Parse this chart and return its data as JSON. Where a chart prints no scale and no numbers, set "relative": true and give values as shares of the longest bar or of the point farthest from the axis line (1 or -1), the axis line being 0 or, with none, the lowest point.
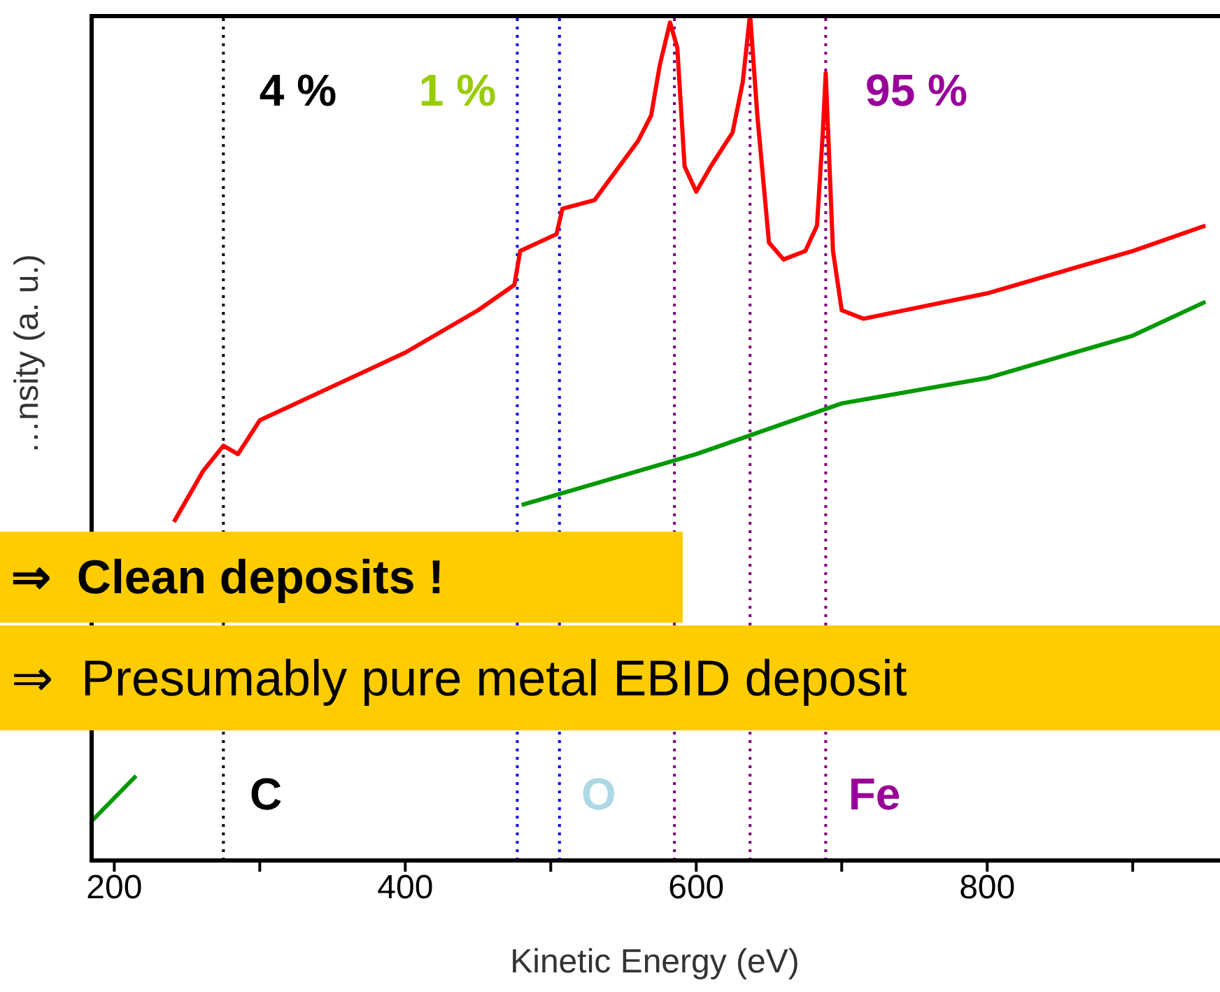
{
  "chart_data": {
    "type": "line",
    "relative": true,
    "xlabel": "Kinetic Energy (eV)",
    "ylabel": "…nsity (a. u.)",
    "xlim": [
      183,
      960
    ],
    "xticks": [
      200,
      {
        "value": 300,
        "label": null
      },
      400,
      {
        "value": 500,
        "label": null
      },
      600,
      {
        "value": 700,
        "label": null
      },
      800,
      {
        "value": 900,
        "label": null
      }
    ],
    "tick_labels": "x",
    "marker": "none",
    "line_style": "solid",
    "series": [
      {
        "color": "#ff0000",
        "x": [
          241,
          261,
          275,
          285,
          300,
          350,
          400,
          450,
          475,
          479,
          504,
          508,
          530,
          560,
          569,
          575,
          582,
          587,
          592,
          600,
          610,
          625,
          632,
          637,
          642,
          650,
          660,
          675,
          683,
          687,
          689,
          694,
          700,
          715,
          800,
          900,
          950
        ],
        "values": [
          0.4,
          0.46,
          0.49,
          0.48,
          0.52,
          0.56,
          0.6,
          0.65,
          0.68,
          0.72,
          0.74,
          0.77,
          0.78,
          0.85,
          0.88,
          0.94,
          0.99,
          0.96,
          0.82,
          0.79,
          0.82,
          0.86,
          0.92,
          1.0,
          0.88,
          0.73,
          0.71,
          0.72,
          0.75,
          0.86,
          0.93,
          0.72,
          0.65,
          0.64,
          0.67,
          0.72,
          0.75
        ]
      },
      {
        "color": "#009900",
        "x": [
          183,
          215,
          350,
          480,
          600,
          650,
          700,
          800,
          900,
          950
        ],
        "values": [
          0.044,
          0.1,
          null,
          0.42,
          0.48,
          0.51,
          0.54,
          0.57,
          0.62,
          0.66
        ]
      }
    ],
    "ref_lines": [
      {
        "axis": "x",
        "value": 275,
        "color": "#000000",
        "line_style": "dotted"
      },
      {
        "axis": "x",
        "value": 477,
        "color": "#0000ff",
        "line_style": "dotted"
      },
      {
        "axis": "x",
        "value": 506,
        "color": "#0000ff",
        "line_style": "dotted"
      },
      {
        "axis": "x",
        "value": 585,
        "color": "#800080",
        "line_style": "dotted"
      },
      {
        "axis": "x",
        "value": 637,
        "color": "#800080",
        "line_style": "dotted"
      },
      {
        "axis": "x",
        "value": 689,
        "color": "#800080",
        "line_style": "dotted"
      }
    ],
    "annotations": [
      "4 %",
      "1 %",
      "95 %",
      "C",
      "O",
      "Fe",
      "⇒  Clean deposits !",
      "⇒  Presumably pure metal EBID deposit"
    ]
  }
}
